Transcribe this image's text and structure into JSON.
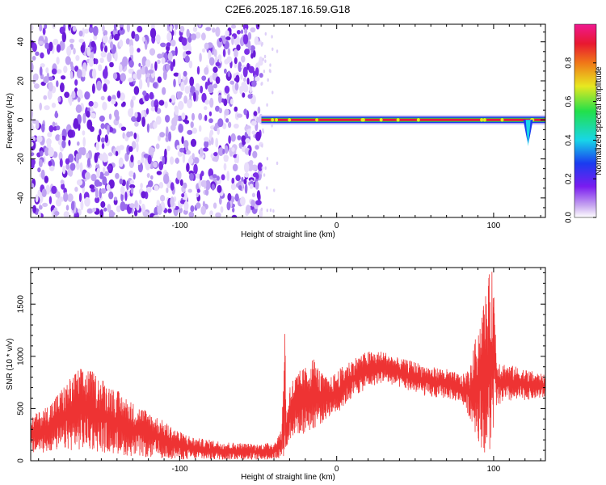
{
  "title": "C2E6.2025.187.16.59.G18",
  "colors": {
    "snr_line": "#ee3333",
    "spectro_noise": "#6a1bd8",
    "spectro_noise_light": "#cdb8f5",
    "ridge_red": "#e8183c",
    "ridge_green": "#2bd04a",
    "ridge_blue": "#1a3cf0"
  },
  "chart_data": [
    {
      "type": "heatmap",
      "title": "C2E6.2025.187.16.59.G18",
      "xlabel": "Height of straight line (km)",
      "ylabel": "Frequency (Hz)",
      "xlim": [
        -195,
        133
      ],
      "ylim": [
        -50,
        49
      ],
      "xticks": [
        -100,
        0,
        100
      ],
      "yticks": [
        -40,
        -20,
        0,
        20,
        40
      ],
      "noise_region_x": [
        -195,
        -48
      ],
      "ridge_frequency": 0,
      "ridge_x": [
        -48,
        133
      ],
      "ridge_dip": {
        "x": 122,
        "frequency_min": -12
      },
      "colorbar": {
        "label": "Normalized spectral amplitude",
        "range": [
          0,
          1
        ],
        "ticks": [
          0.0,
          0.2,
          0.4,
          0.6,
          0.8
        ]
      }
    },
    {
      "type": "line",
      "xlabel": "Height of straight line (km)",
      "ylabel": "SNR (10 * v/v)",
      "xlim": [
        -195,
        133
      ],
      "ylim": [
        0,
        1850
      ],
      "xticks": [
        -100,
        0,
        100
      ],
      "yticks": [
        0,
        500,
        1000,
        1500
      ],
      "series": [
        {
          "x": [
            -195,
            -185,
            -175,
            -165,
            -160,
            -150,
            -140,
            -130,
            -120,
            -110,
            -100,
            -90,
            -80,
            -70,
            -60,
            -50,
            -40,
            -35,
            -33,
            -32,
            -30,
            -25,
            -20,
            -15,
            -10,
            -5,
            0,
            10,
            20,
            30,
            40,
            50,
            60,
            70,
            80,
            85,
            90,
            93,
            96,
            98,
            100,
            102,
            105,
            110,
            120,
            133
          ],
          "upper": [
            420,
            520,
            700,
            880,
            900,
            800,
            680,
            560,
            480,
            380,
            280,
            220,
            200,
            180,
            170,
            160,
            180,
            300,
            1400,
            400,
            750,
            850,
            900,
            1000,
            850,
            780,
            860,
            980,
            1050,
            1050,
            980,
            950,
            900,
            880,
            820,
            900,
            1300,
            1500,
            1700,
            1850,
            1800,
            1000,
            950,
            920,
            880,
            820
          ],
          "lower": [
            60,
            80,
            100,
            100,
            100,
            80,
            60,
            40,
            30,
            20,
            10,
            10,
            10,
            10,
            10,
            10,
            10,
            30,
            50,
            100,
            200,
            250,
            250,
            300,
            350,
            420,
            450,
            600,
            700,
            750,
            700,
            650,
            600,
            600,
            550,
            400,
            200,
            100,
            40,
            20,
            300,
            500,
            550,
            560,
            580,
            600
          ]
        }
      ]
    }
  ]
}
